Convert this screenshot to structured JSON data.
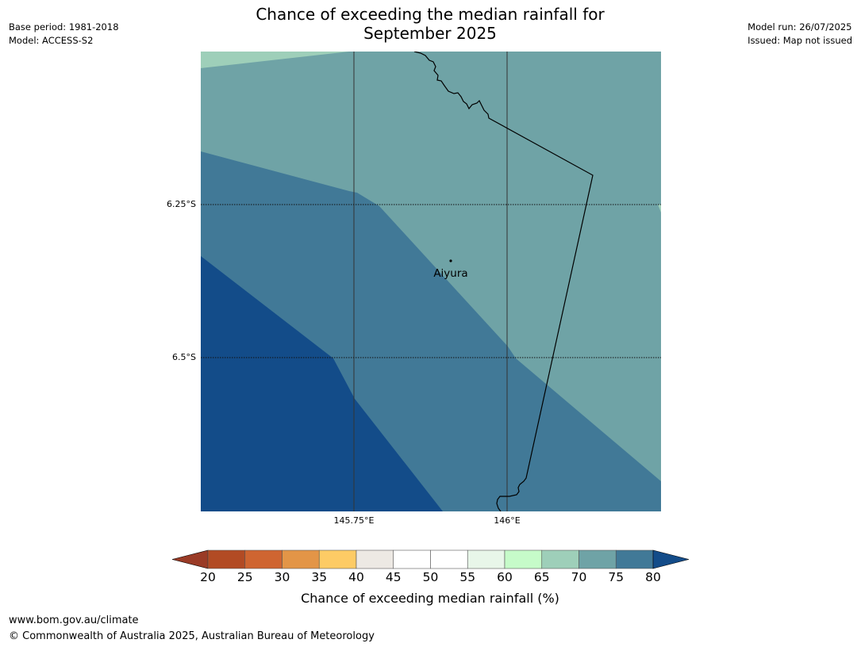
{
  "title": {
    "line1": "Chance of exceeding the median rainfall for",
    "line2": "September 2025"
  },
  "meta_left": {
    "base_period": "Base period: 1981-2018",
    "model": "Model: ACCESS-S2"
  },
  "meta_right": {
    "model_run": "Model run: 26/07/2025",
    "issued": "Issued: Map not issued"
  },
  "map": {
    "place_label": "Aiyura",
    "lat_labels": [
      "6.25°S",
      "6.5°S"
    ],
    "lon_labels": [
      "145.75°E",
      "146°E"
    ],
    "region_colors": {
      "band_65_70": "#9ecfb9",
      "band_70_75": "#6fa3a6",
      "band_75_80": "#417997",
      "band_above_80": "#134c89"
    }
  },
  "colorbar": {
    "label": "Chance of exceeding median rainfall (%)",
    "ticks": [
      "20",
      "25",
      "30",
      "35",
      "40",
      "45",
      "50",
      "55",
      "60",
      "65",
      "70",
      "75",
      "80"
    ],
    "colors": [
      "#b24b24",
      "#cf6531",
      "#e39547",
      "#fdcb65",
      "#ede9e4",
      "#ffffff",
      "#ffffff",
      "#e8f6e9",
      "#c6fbc9",
      "#9ecfb9",
      "#6fa3a6",
      "#417997"
    ],
    "below_color": "#9a3b26",
    "above_color": "#134c89"
  },
  "footer": {
    "url": "www.bom.gov.au/climate",
    "copyright": "© Commonwealth of Australia 2025, Australian Bureau of Meteorology"
  }
}
